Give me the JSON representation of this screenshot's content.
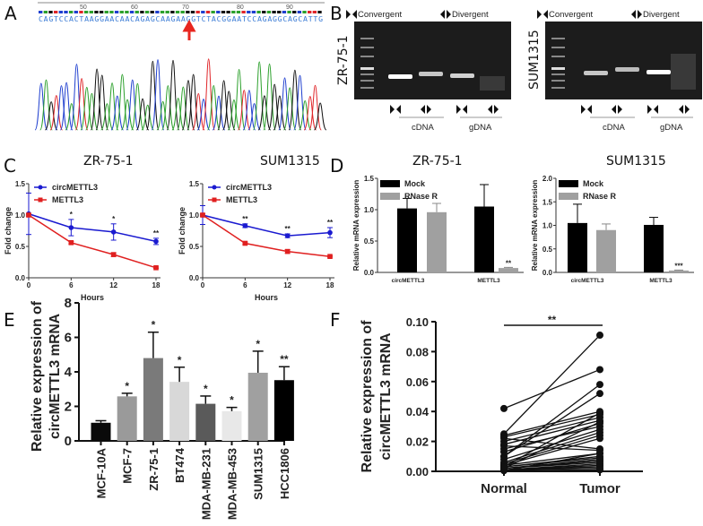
{
  "panels": {
    "a": "A",
    "b": "B",
    "c": "C",
    "d": "D",
    "e": "E",
    "f": "F"
  },
  "panel_a": {
    "ruler_ticks": [
      "50",
      "60",
      "70",
      "80",
      "90"
    ],
    "sequence": "CAGTCCACTAAGGAACAACAGAGCAAGAAGGTCTACGGAATCCAGAGGCAGCATTG",
    "base_colors": {
      "A": "#2ca02c",
      "C": "#1f3fcf",
      "G": "#111111",
      "T": "#e0262a"
    },
    "junction_arrow_color": "#e8261f"
  },
  "panel_b": {
    "gels": [
      {
        "cell_line": "ZR-75-1",
        "convergent": "Convergent",
        "divergent": "Divergent",
        "cdna": "cDNA",
        "gdna": "gDNA"
      },
      {
        "cell_line": "SUM1315",
        "convergent": "Convergent",
        "divergent": "Divergent",
        "cdna": "cDNA",
        "gdna": "gDNA"
      }
    ]
  },
  "chart_data": [
    {
      "id": "C1",
      "type": "line",
      "title": "ZR-75-1",
      "xlabel": "Hours",
      "ylabel": "Fold change",
      "x": [
        0,
        6,
        12,
        18
      ],
      "xticks": [
        "0",
        "6",
        "12",
        "18"
      ],
      "yticks": [
        "0.0",
        "0.5",
        "1.0",
        "1.5"
      ],
      "ylim": [
        0,
        1.5
      ],
      "legend": "top-left",
      "series": [
        {
          "name": "circMETTL3",
          "color": "#1a1ad0",
          "values": [
            1.02,
            0.8,
            0.73,
            0.58
          ],
          "errors": [
            0.33,
            0.13,
            0.13,
            0.05
          ]
        },
        {
          "name": "METTL3",
          "color": "#e02020",
          "values": [
            1.0,
            0.56,
            0.37,
            0.16
          ],
          "errors": [
            0.02,
            0.02,
            0.03,
            0.01
          ]
        }
      ],
      "significance": [
        "",
        "*",
        "*",
        "**"
      ]
    },
    {
      "id": "C2",
      "type": "line",
      "title": "SUM1315",
      "xlabel": "Hours",
      "ylabel": "Fold change",
      "x": [
        0,
        6,
        12,
        18
      ],
      "xticks": [
        "0",
        "6",
        "12",
        "18"
      ],
      "yticks": [
        "0.0",
        "0.5",
        "1.0",
        "1.5"
      ],
      "ylim": [
        0,
        1.5
      ],
      "legend": "top-left",
      "series": [
        {
          "name": "circMETTL3",
          "color": "#1a1ad0",
          "values": [
            1.0,
            0.83,
            0.67,
            0.72
          ],
          "errors": [
            0.15,
            0.03,
            0.03,
            0.08
          ]
        },
        {
          "name": "METTL3",
          "color": "#e02020",
          "values": [
            1.0,
            0.55,
            0.42,
            0.34
          ],
          "errors": [
            0.02,
            0.02,
            0.03,
            0.01
          ]
        }
      ],
      "significance": [
        "",
        "**",
        "**",
        "**"
      ]
    },
    {
      "id": "D1",
      "type": "bar",
      "title": "ZR-75-1",
      "ylabel": "Relative mRNA expression",
      "categories": [
        "circMETTL3",
        "METTL3"
      ],
      "yticks": [
        "0.0",
        "0.5",
        "1.0",
        "1.5"
      ],
      "ylim": [
        0,
        1.5
      ],
      "legend": "top-left",
      "series": [
        {
          "name": "Mock",
          "color": "#000000",
          "values": [
            1.02,
            1.05
          ],
          "errors": [
            0.16,
            0.35
          ]
        },
        {
          "name": "RNase R",
          "color": "#a0a0a0",
          "values": [
            0.96,
            0.07
          ],
          "errors": [
            0.14,
            0.01
          ]
        }
      ],
      "significance": [
        "",
        "**"
      ]
    },
    {
      "id": "D2",
      "type": "bar",
      "title": "SUM1315",
      "ylabel": "Relative mRNA expression",
      "categories": [
        "circMETTL3",
        "METTL3"
      ],
      "yticks": [
        "0.0",
        "0.5",
        "1.0",
        "1.5",
        "2.0"
      ],
      "ylim": [
        0,
        2.0
      ],
      "legend": "top-left",
      "series": [
        {
          "name": "Mock",
          "color": "#000000",
          "values": [
            1.05,
            1.01
          ],
          "errors": [
            0.4,
            0.16
          ]
        },
        {
          "name": "RNase R",
          "color": "#a0a0a0",
          "values": [
            0.9,
            0.04
          ],
          "errors": [
            0.13,
            0.01
          ]
        }
      ],
      "significance": [
        "",
        "***"
      ]
    },
    {
      "id": "E",
      "type": "bar",
      "ylabel": [
        "Relative expression of",
        "circMETTL3 mRNA"
      ],
      "categories": [
        "MCF-10A",
        "MCF-7",
        "ZR-75-1",
        "BT474",
        "MDA-MB-231",
        "MDA-MB-453",
        "SUM1315",
        "HCC1806"
      ],
      "values": [
        1.05,
        2.58,
        4.8,
        3.42,
        2.15,
        1.72,
        3.95,
        3.52
      ],
      "errors": [
        0.12,
        0.18,
        1.5,
        0.85,
        0.45,
        0.22,
        1.25,
        0.78
      ],
      "colors": [
        "#0a0a0a",
        "#9a9a9a",
        "#7a7a7a",
        "#d8d8d8",
        "#5a5a5a",
        "#e8e8e8",
        "#a0a0a0",
        "#000000"
      ],
      "significance": [
        "",
        "*",
        "*",
        "*",
        "*",
        "*",
        "*",
        "**"
      ],
      "yticks": [
        "0",
        "2",
        "4",
        "6",
        "8"
      ],
      "ylim": [
        0,
        8
      ]
    },
    {
      "id": "F",
      "type": "line",
      "ylabel": [
        "Relative expression of",
        "circMETTL3 mRNA"
      ],
      "categories": [
        "Normal",
        "Tumor"
      ],
      "yticks": [
        "0.00",
        "0.02",
        "0.04",
        "0.06",
        "0.08",
        "0.10"
      ],
      "ylim": [
        0,
        0.1
      ],
      "significance": "**",
      "pairs": [
        [
          0.042,
          0.068
        ],
        [
          0.025,
          0.091
        ],
        [
          0.024,
          0.04
        ],
        [
          0.023,
          0.038
        ],
        [
          0.022,
          0.015
        ],
        [
          0.02,
          0.036
        ],
        [
          0.018,
          0.034
        ],
        [
          0.017,
          0.014
        ],
        [
          0.015,
          0.03
        ],
        [
          0.013,
          0.032
        ],
        [
          0.01,
          0.058
        ],
        [
          0.01,
          0.052
        ],
        [
          0.008,
          0.028
        ],
        [
          0.006,
          0.026
        ],
        [
          0.005,
          0.024
        ],
        [
          0.004,
          0.012
        ],
        [
          0.004,
          0.022
        ],
        [
          0.003,
          0.01
        ],
        [
          0.003,
          0.009
        ],
        [
          0.002,
          0.008
        ],
        [
          0.002,
          0.007
        ],
        [
          0.002,
          0.006
        ],
        [
          0.001,
          0.005
        ],
        [
          0.001,
          0.004
        ],
        [
          0.001,
          0.003
        ],
        [
          0.001,
          0.002
        ],
        [
          0.0005,
          0.012
        ],
        [
          0.0005,
          0.001
        ],
        [
          0.002,
          0.033
        ],
        [
          0.003,
          0.039
        ]
      ]
    }
  ]
}
